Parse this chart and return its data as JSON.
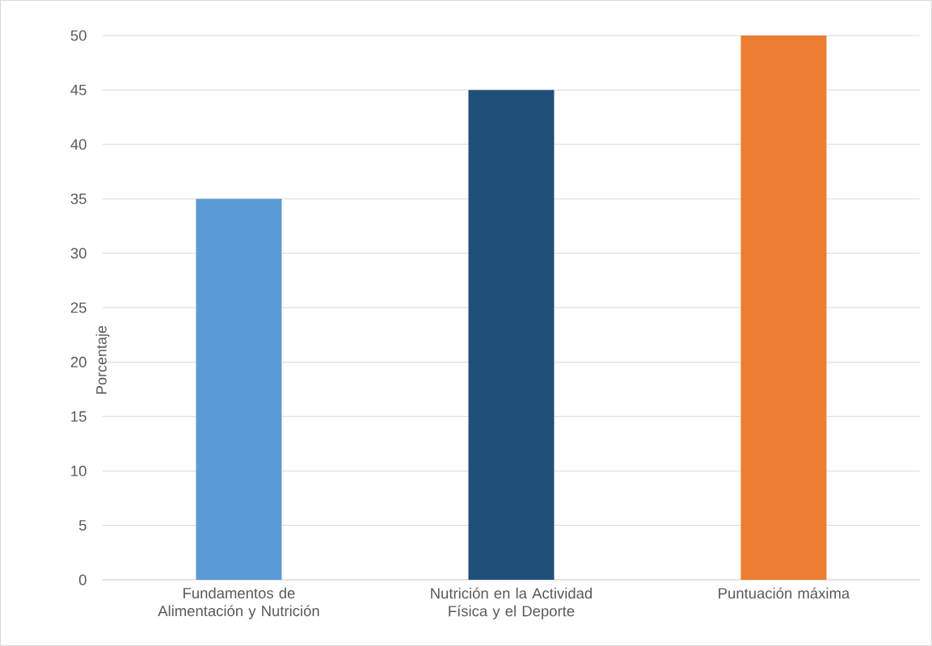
{
  "chart_data": {
    "type": "bar",
    "ylabel": "Porcentaje",
    "categories": [
      "Fundamentos de Alimentación y Nutrición",
      "Nutrición en la Actividad Física y el Deporte",
      "Puntuación máxima"
    ],
    "values": [
      35,
      45,
      50
    ],
    "colors": [
      "#5b9bd5",
      "#1f4e79",
      "#ed7d31"
    ],
    "ylim": [
      0,
      50
    ],
    "yticks": [
      0,
      5,
      10,
      15,
      20,
      25,
      30,
      35,
      40,
      45,
      50
    ],
    "grid": "y"
  }
}
